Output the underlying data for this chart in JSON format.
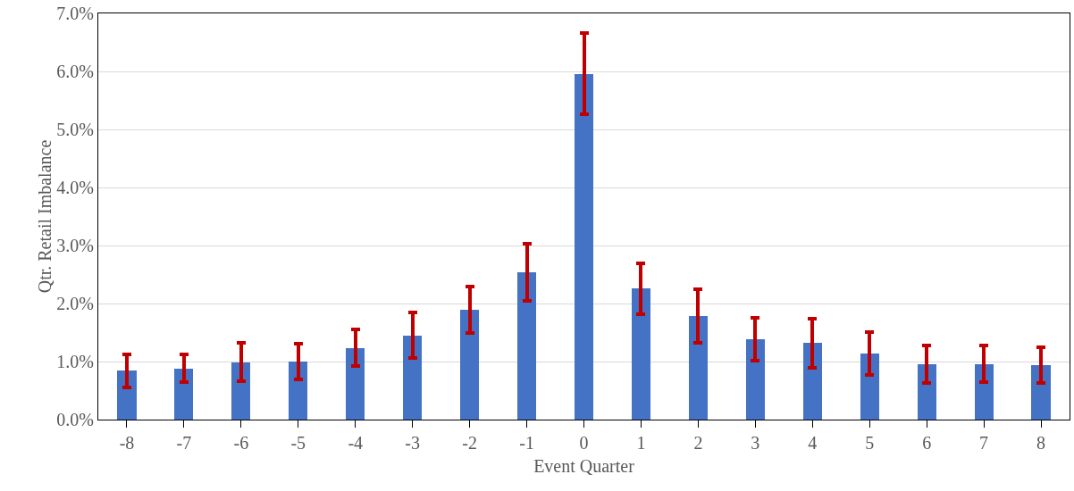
{
  "chart_data": {
    "type": "bar",
    "xlabel": "Event Quarter",
    "ylabel": "Qtr. Retail Imbalance",
    "categories": [
      "-8",
      "-7",
      "-6",
      "-5",
      "-4",
      "-3",
      "-2",
      "-1",
      "0",
      "1",
      "2",
      "3",
      "4",
      "5",
      "6",
      "7",
      "8"
    ],
    "series": [
      {
        "color": "#4472c4",
        "values": [
          0.84,
          0.88,
          0.99,
          1.0,
          1.23,
          1.45,
          1.89,
          2.54,
          5.96,
          2.26,
          1.79,
          1.38,
          1.32,
          1.14,
          0.96,
          0.96,
          0.94
        ],
        "errors": [
          [
            0.55,
            1.13
          ],
          [
            0.64,
            1.12
          ],
          [
            0.66,
            1.32
          ],
          [
            0.69,
            1.31
          ],
          [
            0.92,
            1.55
          ],
          [
            1.06,
            1.84
          ],
          [
            1.49,
            2.29
          ],
          [
            2.05,
            3.03
          ],
          [
            5.26,
            6.66
          ],
          [
            1.82,
            2.7
          ],
          [
            1.33,
            2.24
          ],
          [
            1.01,
            1.75
          ],
          [
            0.89,
            1.74
          ],
          [
            0.77,
            1.51
          ],
          [
            0.63,
            1.28
          ],
          [
            0.65,
            1.27
          ],
          [
            0.63,
            1.24
          ]
        ]
      }
    ],
    "ylim": [
      0,
      7
    ],
    "yticks": [
      {
        "value": 0,
        "label": "0.0%"
      },
      {
        "value": 1,
        "label": "1.0%"
      },
      {
        "value": 2,
        "label": "2.0%"
      },
      {
        "value": 3,
        "label": "3.0%"
      },
      {
        "value": 4,
        "label": "4.0%"
      },
      {
        "value": 5,
        "label": "5.0%"
      },
      {
        "value": 6,
        "label": "6.0%"
      },
      {
        "value": 7,
        "label": "7.0%"
      }
    ],
    "grid": "y"
  }
}
